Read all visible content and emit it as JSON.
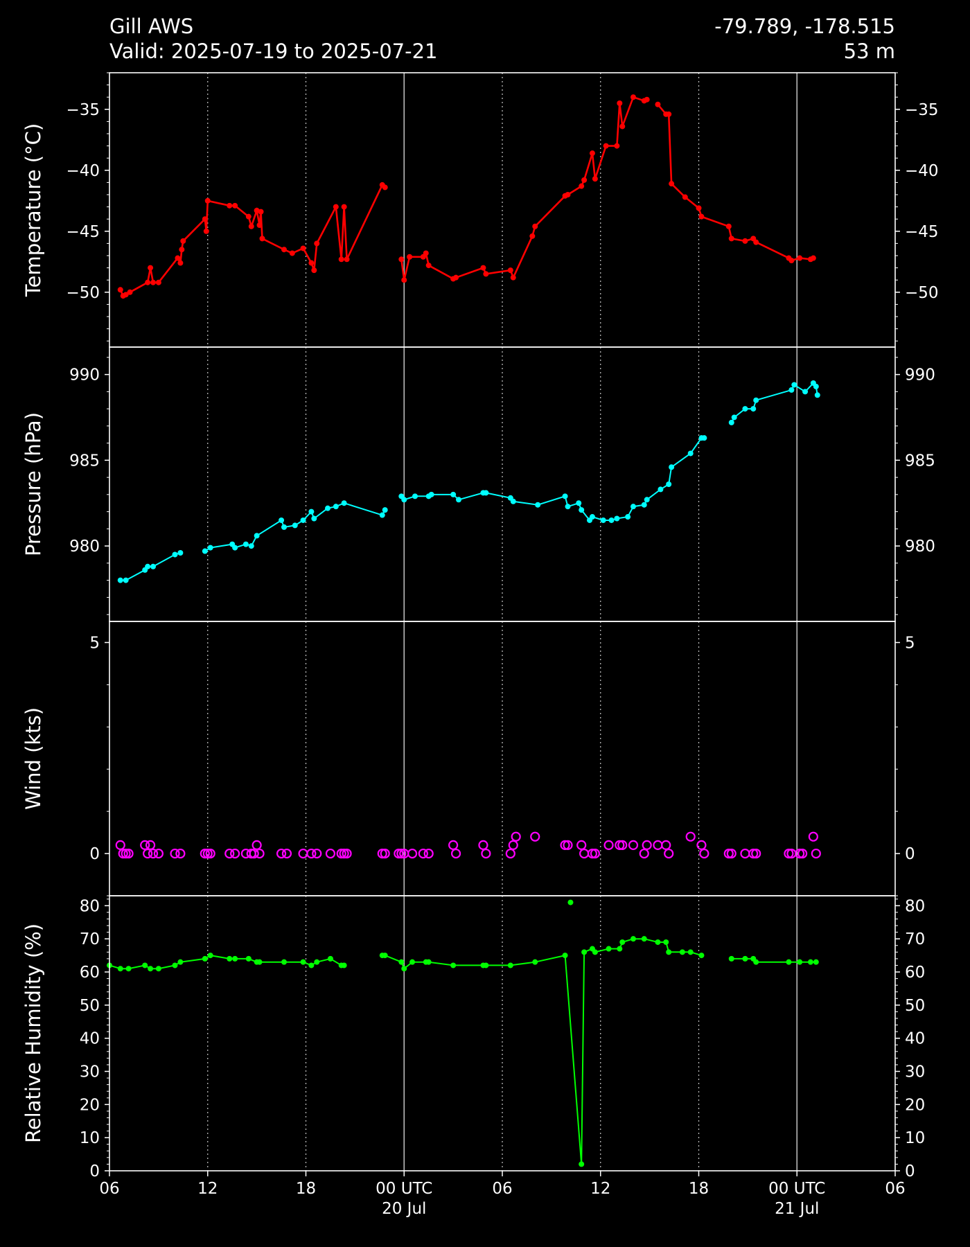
{
  "header": {
    "station": "Gill AWS",
    "valid": "Valid: 2025-07-19 to 2025-07-21",
    "coords": "-79.789, -178.515",
    "elevation": "53 m"
  },
  "chart_data": [
    {
      "type": "line",
      "panel": "temperature",
      "ylabel": "Temperature ($^\\circ$C)",
      "ylabel_display": "Temperature (°C)",
      "color": "#ff0000",
      "ylim": [
        -54.5,
        -32
      ],
      "yticks": [
        -50,
        -45,
        -40,
        -35
      ],
      "ytick_labels": [
        "−50",
        "−45",
        "−40",
        "−35"
      ],
      "x": [
        "2025-07-19 06:40",
        "2025-07-19 06:50",
        "2025-07-19 07:00",
        "2025-07-19 07:15",
        "2025-07-19 08:20",
        "2025-07-19 08:30",
        "2025-07-19 08:40",
        "2025-07-19 09:00",
        "2025-07-19 10:10",
        "2025-07-19 10:20",
        "2025-07-19 10:25",
        "2025-07-19 10:30",
        "2025-07-19 11:50",
        "2025-07-19 11:55",
        "2025-07-19 12:00",
        "2025-07-19 13:20",
        "2025-07-19 13:40",
        "2025-07-19 14:30",
        "2025-07-19 14:40",
        "2025-07-19 15:00",
        "2025-07-19 15:10",
        "2025-07-19 15:15",
        "2025-07-19 15:20",
        "2025-07-19 16:40",
        "2025-07-19 17:10",
        "2025-07-19 17:50",
        "2025-07-19 18:20",
        "2025-07-19 18:30",
        "2025-07-19 18:40",
        "2025-07-19 19:50",
        "2025-07-19 20:10",
        "2025-07-19 20:20",
        "2025-07-19 20:30",
        "2025-07-19 22:40",
        "2025-07-19 22:50",
        "2025-07-19 23:50",
        "2025-07-20 00:00",
        "2025-07-20 00:20",
        "2025-07-20 01:10",
        "2025-07-20 01:20",
        "2025-07-20 01:30",
        "2025-07-20 03:00",
        "2025-07-20 03:10",
        "2025-07-20 04:50",
        "2025-07-20 05:00",
        "2025-07-20 06:30",
        "2025-07-20 06:40",
        "2025-07-20 07:50",
        "2025-07-20 08:00",
        "2025-07-20 09:50",
        "2025-07-20 10:00",
        "2025-07-20 10:50",
        "2025-07-20 11:00",
        "2025-07-20 11:30",
        "2025-07-20 11:40",
        "2025-07-20 12:20",
        "2025-07-20 13:00",
        "2025-07-20 13:10",
        "2025-07-20 13:20",
        "2025-07-20 14:00",
        "2025-07-20 14:40",
        "2025-07-20 14:50",
        "2025-07-20 15:30",
        "2025-07-20 16:00",
        "2025-07-20 16:10",
        "2025-07-20 16:20",
        "2025-07-20 17:10",
        "2025-07-20 18:00",
        "2025-07-20 18:10",
        "2025-07-20 19:50",
        "2025-07-20 20:00",
        "2025-07-20 20:50",
        "2025-07-20 21:20",
        "2025-07-20 21:30",
        "2025-07-20 23:30",
        "2025-07-20 23:40",
        "2025-07-21 00:10",
        "2025-07-21 00:50",
        "2025-07-21 01:00"
      ],
      "y": [
        -49.8,
        -50.3,
        -50.2,
        -50.0,
        -49.2,
        -48.0,
        -49.2,
        -49.2,
        -47.2,
        -47.6,
        -46.5,
        -45.8,
        -44.0,
        -45.0,
        -42.5,
        -42.9,
        -42.9,
        -43.8,
        -44.6,
        -43.3,
        -44.5,
        -43.4,
        -45.6,
        -46.5,
        -46.8,
        -46.4,
        -47.6,
        -48.2,
        -46.0,
        -43.0,
        -47.3,
        -43.0,
        -47.3,
        -41.2,
        -41.4,
        -47.3,
        -49.0,
        -47.1,
        -47.1,
        -46.8,
        -47.8,
        -48.9,
        -48.8,
        -48.0,
        -48.5,
        -48.2,
        -48.8,
        -45.4,
        -44.6,
        -42.1,
        -42.0,
        -41.3,
        -40.8,
        -38.6,
        -40.7,
        -38.0,
        -38.0,
        -34.5,
        -36.4,
        -34.0,
        -34.3,
        -34.2,
        -34.6,
        -35.4,
        -35.4,
        -41.1,
        -42.2,
        -43.1,
        -43.8,
        -44.6,
        -45.6,
        -45.8,
        -45.6,
        -45.9,
        -47.2,
        -47.4,
        -47.2,
        -47.3,
        -47.2
      ],
      "gaps_after": [
        "2025-07-19 22:50",
        "2025-07-20 14:50"
      ]
    },
    {
      "type": "line",
      "panel": "pressure",
      "ylabel": "Pressure (hPa)",
      "color": "#00ffff",
      "ylim": [
        975.6,
        991.6
      ],
      "yticks": [
        980,
        985,
        990
      ],
      "ytick_labels": [
        "980",
        "985",
        "990"
      ],
      "x": [
        "2025-07-19 06:40",
        "2025-07-19 07:00",
        "2025-07-19 08:10",
        "2025-07-19 08:20",
        "2025-07-19 08:40",
        "2025-07-19 10:00",
        "2025-07-19 10:20",
        "2025-07-19 11:50",
        "2025-07-19 12:10",
        "2025-07-19 13:30",
        "2025-07-19 13:40",
        "2025-07-19 14:20",
        "2025-07-19 14:40",
        "2025-07-19 15:00",
        "2025-07-19 16:30",
        "2025-07-19 16:40",
        "2025-07-19 17:20",
        "2025-07-19 17:50",
        "2025-07-19 18:20",
        "2025-07-19 18:30",
        "2025-07-19 19:20",
        "2025-07-19 19:50",
        "2025-07-19 20:20",
        "2025-07-19 22:40",
        "2025-07-19 22:50",
        "2025-07-19 23:50",
        "2025-07-20 00:00",
        "2025-07-20 00:40",
        "2025-07-20 01:30",
        "2025-07-20 01:40",
        "2025-07-20 03:00",
        "2025-07-20 03:20",
        "2025-07-20 04:50",
        "2025-07-20 05:00",
        "2025-07-20 06:30",
        "2025-07-20 06:40",
        "2025-07-20 08:10",
        "2025-07-20 09:50",
        "2025-07-20 10:00",
        "2025-07-20 10:40",
        "2025-07-20 10:50",
        "2025-07-20 11:20",
        "2025-07-20 11:30",
        "2025-07-20 12:10",
        "2025-07-20 12:40",
        "2025-07-20 13:00",
        "2025-07-20 13:40",
        "2025-07-20 14:00",
        "2025-07-20 14:40",
        "2025-07-20 14:50",
        "2025-07-20 15:40",
        "2025-07-20 16:10",
        "2025-07-20 16:20",
        "2025-07-20 17:30",
        "2025-07-20 18:10",
        "2025-07-20 18:20",
        "2025-07-20 20:00",
        "2025-07-20 20:10",
        "2025-07-20 20:50",
        "2025-07-20 21:20",
        "2025-07-20 21:30",
        "2025-07-20 23:40",
        "2025-07-20 23:50",
        "2025-07-21 00:30",
        "2025-07-21 01:00",
        "2025-07-21 01:10",
        "2025-07-21 01:15"
      ],
      "y": [
        978.0,
        978.0,
        978.6,
        978.8,
        978.8,
        979.5,
        979.6,
        979.7,
        979.9,
        980.1,
        979.9,
        980.1,
        980.0,
        980.6,
        981.5,
        981.1,
        981.2,
        981.5,
        982.0,
        981.6,
        982.2,
        982.3,
        982.5,
        981.8,
        982.1,
        982.9,
        982.7,
        982.9,
        982.9,
        983.0,
        983.0,
        982.7,
        983.1,
        983.1,
        982.8,
        982.6,
        982.4,
        982.9,
        982.3,
        982.5,
        982.1,
        981.5,
        981.7,
        981.5,
        981.5,
        981.6,
        981.7,
        982.3,
        982.4,
        982.7,
        983.3,
        983.6,
        984.6,
        985.4,
        986.3,
        986.3,
        987.2,
        987.5,
        988.0,
        988.0,
        988.5,
        989.1,
        989.4,
        989.0,
        989.5,
        989.3,
        988.8
      ],
      "gaps_after": [
        "2025-07-19 10:20",
        "2025-07-19 22:50",
        "2025-07-20 18:20"
      ]
    },
    {
      "type": "scatter",
      "panel": "wind",
      "ylabel": "Wind (kts)",
      "color": "#ff00ff",
      "marker": "open-circle",
      "ylim": [
        -1.0,
        5.5
      ],
      "yticks": [
        0,
        5
      ],
      "ytick_labels": [
        "0",
        "5"
      ],
      "x": [
        "2025-07-19 06:40",
        "2025-07-19 06:50",
        "2025-07-19 07:00",
        "2025-07-19 07:10",
        "2025-07-19 08:10",
        "2025-07-19 08:20",
        "2025-07-19 08:30",
        "2025-07-19 08:40",
        "2025-07-19 09:00",
        "2025-07-19 10:00",
        "2025-07-19 10:20",
        "2025-07-19 11:50",
        "2025-07-19 12:00",
        "2025-07-19 12:10",
        "2025-07-19 13:20",
        "2025-07-19 13:40",
        "2025-07-19 14:20",
        "2025-07-19 14:40",
        "2025-07-19 14:50",
        "2025-07-19 15:00",
        "2025-07-19 15:10",
        "2025-07-19 16:30",
        "2025-07-19 16:50",
        "2025-07-19 17:50",
        "2025-07-19 18:20",
        "2025-07-19 18:40",
        "2025-07-19 19:30",
        "2025-07-19 20:10",
        "2025-07-19 20:20",
        "2025-07-19 20:30",
        "2025-07-19 22:40",
        "2025-07-19 22:50",
        "2025-07-19 23:40",
        "2025-07-19 23:50",
        "2025-07-20 00:00",
        "2025-07-20 00:30",
        "2025-07-20 01:10",
        "2025-07-20 01:30",
        "2025-07-20 03:00",
        "2025-07-20 03:10",
        "2025-07-20 04:50",
        "2025-07-20 05:00",
        "2025-07-20 06:30",
        "2025-07-20 06:40",
        "2025-07-20 06:50",
        "2025-07-20 08:00",
        "2025-07-20 09:50",
        "2025-07-20 10:00",
        "2025-07-20 10:50",
        "2025-07-20 11:00",
        "2025-07-20 11:30",
        "2025-07-20 11:40",
        "2025-07-20 12:30",
        "2025-07-20 13:10",
        "2025-07-20 13:20",
        "2025-07-20 14:00",
        "2025-07-20 14:40",
        "2025-07-20 14:50",
        "2025-07-20 15:30",
        "2025-07-20 16:00",
        "2025-07-20 16:10",
        "2025-07-20 17:30",
        "2025-07-20 18:10",
        "2025-07-20 18:20",
        "2025-07-20 19:50",
        "2025-07-20 20:00",
        "2025-07-20 20:50",
        "2025-07-20 21:20",
        "2025-07-20 21:30",
        "2025-07-20 23:30",
        "2025-07-20 23:40",
        "2025-07-21 00:10",
        "2025-07-21 00:20",
        "2025-07-21 01:00",
        "2025-07-21 01:10"
      ],
      "y": [
        0.2,
        0,
        0,
        0,
        0.2,
        0,
        0.2,
        0,
        0,
        0,
        0,
        0,
        0,
        0,
        0,
        0,
        0,
        0,
        0,
        0.2,
        0,
        0,
        0,
        0,
        0,
        0,
        0,
        0,
        0,
        0,
        0,
        0,
        0,
        0,
        0,
        0,
        0,
        0,
        0.2,
        0,
        0.2,
        0,
        0,
        0.2,
        0.4,
        0.4,
        0.2,
        0.2,
        0.2,
        0,
        0,
        0,
        0.2,
        0.2,
        0.2,
        0.2,
        0,
        0.2,
        0.2,
        0.2,
        0,
        0.4,
        0.2,
        0,
        0,
        0,
        0,
        0,
        0,
        0,
        0,
        0,
        0,
        0.4,
        0
      ]
    },
    {
      "type": "line",
      "panel": "relative-humidity",
      "ylabel": "Relative Humidity (%)",
      "color": "#00ff00",
      "ylim": [
        0,
        83
      ],
      "yticks": [
        0,
        10,
        20,
        30,
        40,
        50,
        60,
        70,
        80
      ],
      "ytick_labels": [
        "0",
        "10",
        "20",
        "30",
        "40",
        "50",
        "60",
        "70",
        "80"
      ],
      "x": [
        "2025-07-19 06:00",
        "2025-07-19 06:40",
        "2025-07-19 07:10",
        "2025-07-19 08:10",
        "2025-07-19 08:30",
        "2025-07-19 09:00",
        "2025-07-19 10:00",
        "2025-07-19 10:20",
        "2025-07-19 11:50",
        "2025-07-19 12:10",
        "2025-07-19 13:20",
        "2025-07-19 13:40",
        "2025-07-19 14:30",
        "2025-07-19 15:00",
        "2025-07-19 15:10",
        "2025-07-19 16:40",
        "2025-07-19 17:50",
        "2025-07-19 18:20",
        "2025-07-19 18:40",
        "2025-07-19 19:30",
        "2025-07-19 20:10",
        "2025-07-19 20:20",
        "2025-07-19 22:40",
        "2025-07-19 22:50",
        "2025-07-19 23:50",
        "2025-07-20 00:00",
        "2025-07-20 00:30",
        "2025-07-20 01:20",
        "2025-07-20 01:30",
        "2025-07-20 03:00",
        "2025-07-20 04:50",
        "2025-07-20 05:00",
        "2025-07-20 06:30",
        "2025-07-20 08:00",
        "2025-07-20 09:50",
        "2025-07-20 10:50",
        "2025-07-20 11:00",
        "2025-07-20 11:30",
        "2025-07-20 11:40",
        "2025-07-20 12:30",
        "2025-07-20 13:10",
        "2025-07-20 13:20",
        "2025-07-20 14:00",
        "2025-07-20 14:40",
        "2025-07-20 15:30",
        "2025-07-20 16:00",
        "2025-07-20 16:10",
        "2025-07-20 17:00",
        "2025-07-20 17:30",
        "2025-07-20 18:10",
        "2025-07-20 20:00",
        "2025-07-20 20:50",
        "2025-07-20 21:20",
        "2025-07-20 21:30",
        "2025-07-20 23:30",
        "2025-07-21 00:10",
        "2025-07-21 00:50",
        "2025-07-21 01:10"
      ],
      "y": [
        62,
        61,
        61,
        62,
        61,
        61,
        62,
        63,
        64,
        65,
        64,
        64,
        64,
        63,
        63,
        63,
        63,
        62,
        63,
        64,
        62,
        62,
        65,
        65,
        63,
        61,
        63,
        63,
        63,
        62,
        62,
        62,
        62,
        63,
        65,
        2,
        66,
        67,
        66,
        67,
        67,
        69,
        70,
        70,
        69,
        69,
        66,
        66,
        66,
        65,
        64,
        64,
        64,
        63,
        63,
        63,
        63,
        63
      ],
      "gaps_after": [
        "2025-07-19 20:20",
        "2025-07-20 18:10"
      ],
      "extra_points": [
        {
          "x": "2025-07-20 10:10",
          "y": 81
        }
      ]
    }
  ],
  "xaxis": {
    "start": "2025-07-19 06:00",
    "end": "2025-07-21 06:00",
    "ticks": [
      {
        "t": "2025-07-19 06:00",
        "label": "06",
        "sub": "",
        "major": false
      },
      {
        "t": "2025-07-19 12:00",
        "label": "12",
        "sub": "",
        "major": false
      },
      {
        "t": "2025-07-19 18:00",
        "label": "18",
        "sub": "",
        "major": false
      },
      {
        "t": "2025-07-20 00:00",
        "label": "00 UTC",
        "sub": "20 Jul",
        "major": true
      },
      {
        "t": "2025-07-20 06:00",
        "label": "06",
        "sub": "",
        "major": false
      },
      {
        "t": "2025-07-20 12:00",
        "label": "12",
        "sub": "",
        "major": false
      },
      {
        "t": "2025-07-20 18:00",
        "label": "18",
        "sub": "",
        "major": false
      },
      {
        "t": "2025-07-21 00:00",
        "label": "00 UTC",
        "sub": "21 Jul",
        "major": true
      },
      {
        "t": "2025-07-21 06:00",
        "label": "06",
        "sub": "",
        "major": false
      }
    ]
  }
}
